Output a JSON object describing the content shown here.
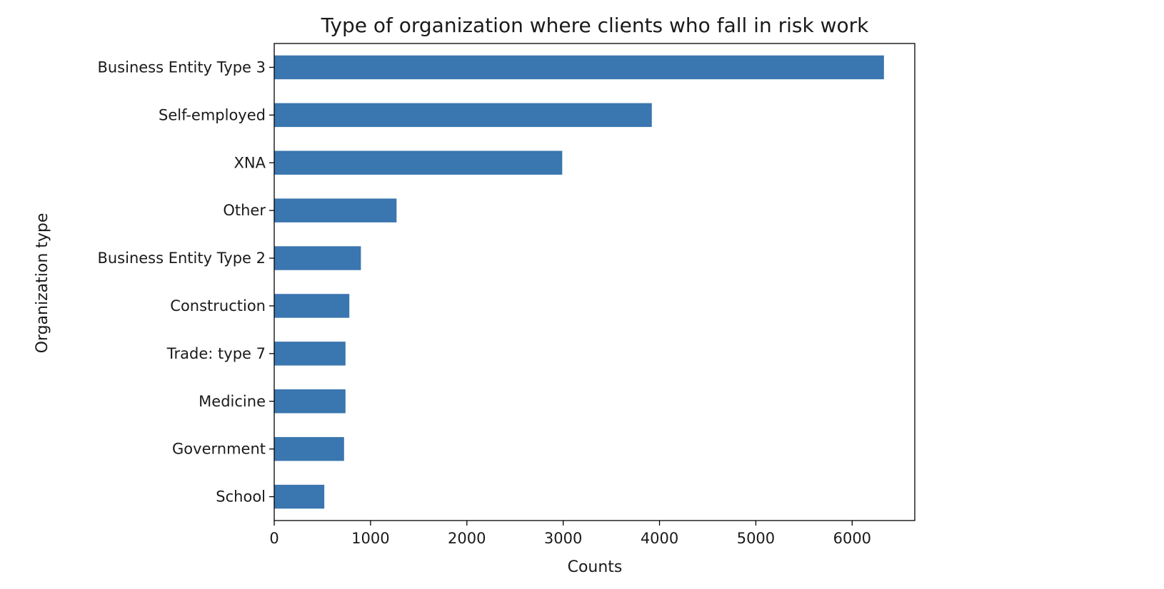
{
  "chart_data": {
    "type": "bar",
    "orientation": "horizontal",
    "title": "Type of organization where clients who fall in risk work",
    "xlabel": "Counts",
    "ylabel": "Organization type",
    "categories": [
      "Business Entity Type 3",
      "Self-employed",
      "XNA",
      "Other",
      "Business Entity Type 2",
      "Construction",
      "Trade: type 7",
      "Medicine",
      "Government",
      "School"
    ],
    "values": [
      6330,
      3920,
      2990,
      1270,
      900,
      780,
      740,
      740,
      725,
      520
    ],
    "xlim": [
      0,
      6650
    ],
    "xticks": [
      0,
      1000,
      2000,
      3000,
      4000,
      5000,
      6000
    ],
    "xtick_labels": [
      "0",
      "1000",
      "2000",
      "3000",
      "4000",
      "5000",
      "6000"
    ],
    "bar_color": "#3a76af",
    "grid": false,
    "legend": "none"
  }
}
